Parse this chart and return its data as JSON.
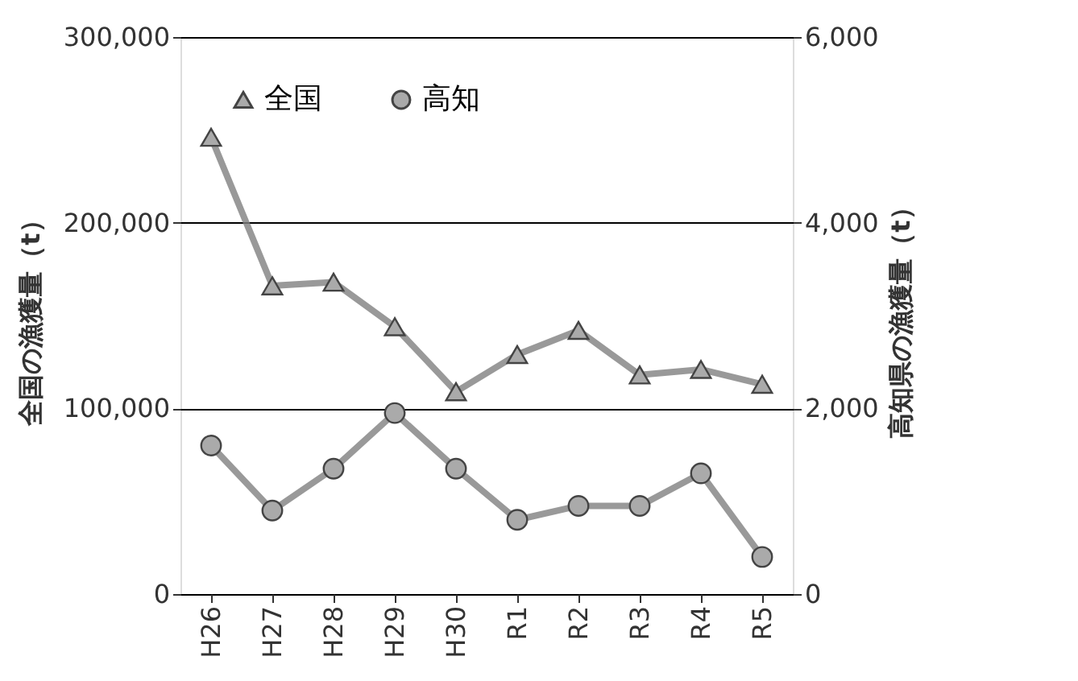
{
  "chart_data": {
    "type": "line",
    "ylabel": "全国の漁獲量（t）",
    "y2label": "高知県の漁獲量（t）",
    "categories": [
      "H26",
      "H27",
      "H28",
      "H29",
      "H30",
      "R1",
      "R2",
      "R3",
      "R4",
      "R5"
    ],
    "series": [
      {
        "name": "全国",
        "color": "#7f7f7f",
        "marker": "triangle",
        "values": [
          246000,
          166000,
          168000,
          144000,
          109000,
          129000,
          142000,
          118000,
          121000,
          113000
        ]
      },
      {
        "name": "高知",
        "color": "#7f7f7f",
        "marker": "circle",
        "axis": "y2",
        "values": [
          1600,
          900,
          1350,
          1950,
          1350,
          800,
          950,
          950,
          1300,
          400
        ]
      }
    ],
    "ylim": [
      0,
      300000
    ],
    "yticks": [
      0,
      {
        "value": 100000,
        "label": "100,000"
      },
      {
        "value": 200000,
        "label": "200,000"
      },
      {
        "value": 300000,
        "label": "300,000"
      }
    ],
    "y2lim": [
      0,
      6000
    ],
    "y2ticks": [
      0,
      {
        "value": 2000,
        "label": "2,000"
      },
      {
        "value": 4000,
        "label": "4,000"
      },
      {
        "value": 6000,
        "label": "6,000"
      }
    ],
    "grid": "y",
    "legend": "top left"
  }
}
